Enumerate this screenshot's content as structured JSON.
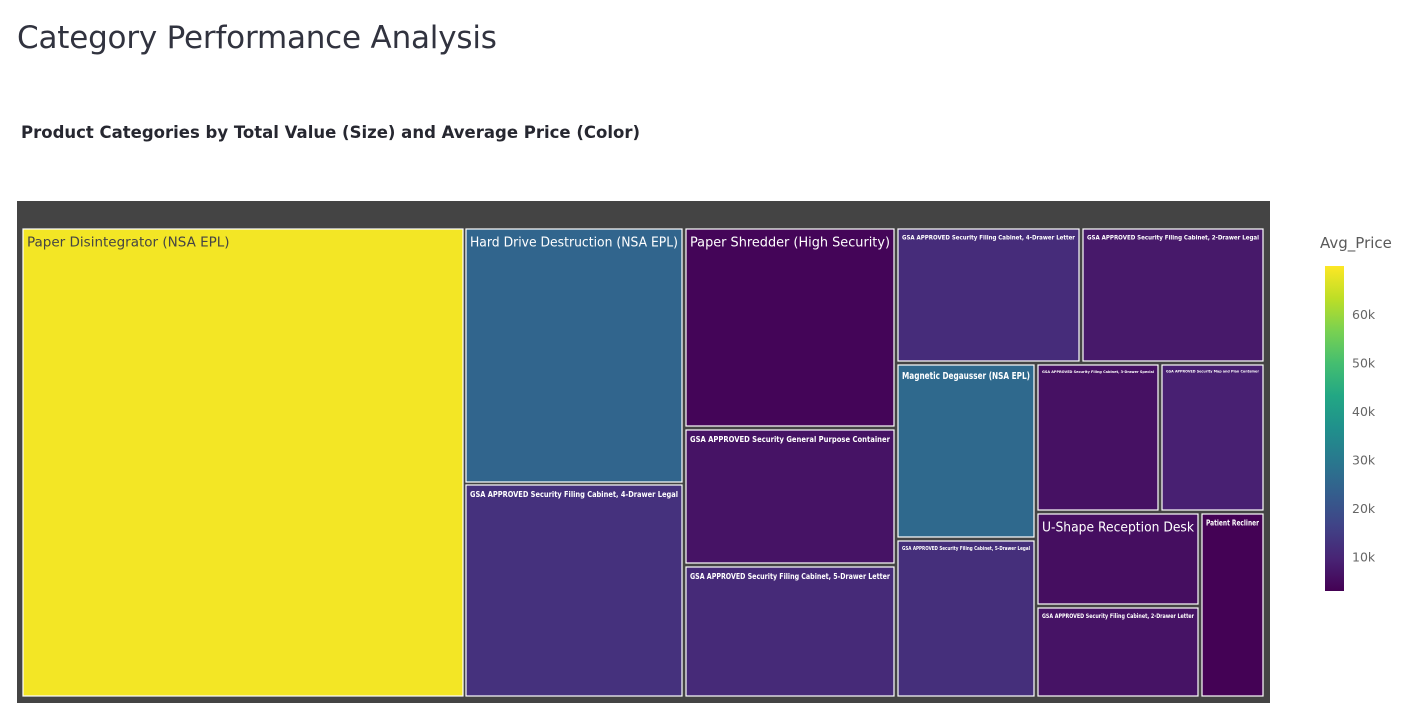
{
  "page": {
    "title": "Category Performance Analysis"
  },
  "chart_data": {
    "type": "treemap",
    "title": "Product Categories by Total Value (Size) and Average Price (Color)",
    "color_metric": "Avg_Price",
    "colorscale": "viridis",
    "color_range": [
      3000,
      70000
    ],
    "colorbar_ticks": [
      {
        "value": 60000,
        "label": "60k"
      },
      {
        "value": 50000,
        "label": "50k"
      },
      {
        "value": 40000,
        "label": "40k"
      },
      {
        "value": 30000,
        "label": "30k"
      },
      {
        "value": 20000,
        "label": "20k"
      },
      {
        "value": 10000,
        "label": "10k"
      }
    ],
    "root_color": "#444444",
    "tiles": [
      {
        "label": "Paper Disintegrator (NSA EPL)",
        "avg_price": 69000
      },
      {
        "label": "Hard Drive Destruction (NSA EPL)",
        "avg_price": 25000
      },
      {
        "label": "GSA APPROVED Security Filing Cabinet, 4-Drawer Legal",
        "avg_price": 12500
      },
      {
        "label": "Paper Shredder (High Security)",
        "avg_price": 3800
      },
      {
        "label": "GSA APPROVED Security General Purpose Container",
        "avg_price": 6500
      },
      {
        "label": "GSA APPROVED Security Filing Cabinet, 5-Drawer Letter",
        "avg_price": 11000
      },
      {
        "label": "GSA APPROVED Security Filing Cabinet, 4-Drawer Letter",
        "avg_price": 11500
      },
      {
        "label": "GSA APPROVED Security Filing Cabinet, 2-Drawer Legal",
        "avg_price": 7500
      },
      {
        "label": "Magnetic Degausser (NSA EPL)",
        "avg_price": 26000
      },
      {
        "label": "GSA APPROVED Security Filing Cabinet, 5-Drawer Legal",
        "avg_price": 12000
      },
      {
        "label": "GSA APPROVED Security Filing Cabinet, 3-Drawer Special",
        "avg_price": 6000
      },
      {
        "label": "GSA APPROVED Security Map and Plan Container",
        "avg_price": 9000
      },
      {
        "label": "U-Shape Reception Desk",
        "avg_price": 5500
      },
      {
        "label": "GSA APPROVED Security Filing Cabinet, 2-Drawer Letter",
        "avg_price": 6500
      },
      {
        "label": "Patient Recliner",
        "avg_price": 3200
      }
    ]
  }
}
